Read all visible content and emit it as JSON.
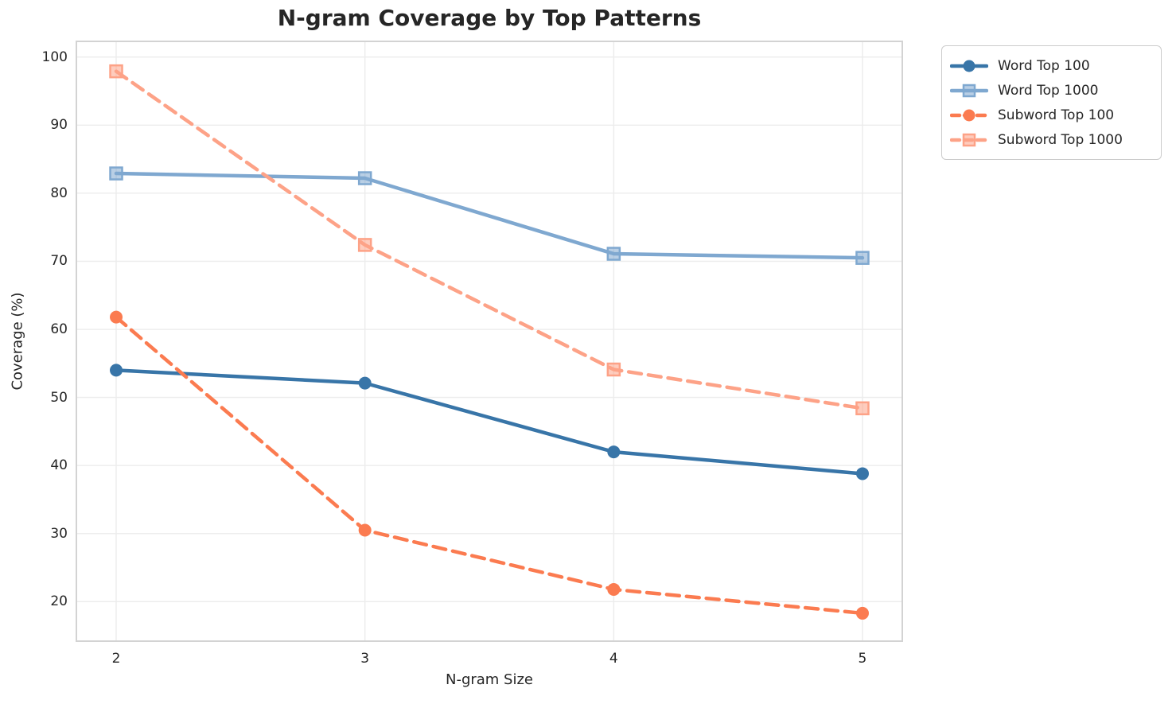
{
  "figure": {
    "title": "N-gram Coverage by Top Patterns",
    "xlabel": "N-gram Size",
    "ylabel": "Coverage (%)"
  },
  "chart_data": {
    "type": "line",
    "title": "N-gram Coverage by Top Patterns",
    "xlabel": "N-gram Size",
    "ylabel": "Coverage (%)",
    "x": [
      2,
      3,
      4,
      5
    ],
    "xtick_labels": [
      "2",
      "3",
      "4",
      "5"
    ],
    "yticks": [
      20,
      30,
      40,
      50,
      60,
      70,
      80,
      90,
      100
    ],
    "xlim": [
      1.84,
      5.16
    ],
    "ylim": [
      14.2,
      102.3
    ],
    "grid": true,
    "legend_position": "outside-upper-right",
    "background_color": "#ffffff",
    "grid_color": "#ececec",
    "spine_color": "#d3d3d3",
    "text_color": "#262626",
    "series": [
      {
        "name": "Word Top 100",
        "values": [
          54.0,
          52.1,
          42.0,
          38.8
        ],
        "color": "#3875a8",
        "linestyle": "solid",
        "marker": "circle"
      },
      {
        "name": "Word Top 1000",
        "values": [
          82.9,
          82.2,
          71.1,
          70.5
        ],
        "color": "#7fa8d0",
        "linestyle": "solid",
        "marker": "square"
      },
      {
        "name": "Subword Top 100",
        "values": [
          61.8,
          30.5,
          21.8,
          18.3
        ],
        "color": "#fb7b50",
        "linestyle": "dashed",
        "marker": "circle"
      },
      {
        "name": "Subword Top 1000",
        "values": [
          97.9,
          72.4,
          54.1,
          48.4
        ],
        "color": "#fda287",
        "linestyle": "dashed",
        "marker": "square"
      }
    ]
  }
}
